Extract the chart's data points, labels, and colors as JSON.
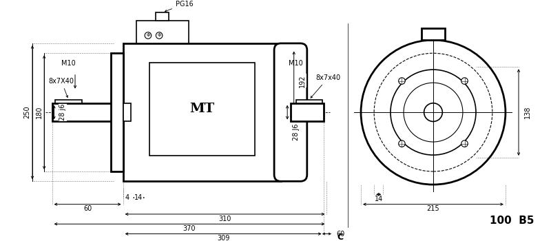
{
  "title": "100  B5",
  "bg_color": "#ffffff",
  "line_color": "#000000",
  "dim_color": "#000000",
  "fig_width": 8.0,
  "fig_height": 3.5,
  "labels": {
    "key_8x7x40_left": "8x7X40",
    "key_pg16": "PG16",
    "key_8x7x40_right": "8x7x40",
    "m10_left": "M10",
    "m10_right": "M10",
    "mt": "MT",
    "dim_250": "250",
    "dim_180": "180",
    "dim_28j6_left": "28 j6",
    "dim_28j6_right": "28 J6",
    "dim_192": "192",
    "dim_4": "4",
    "dim_14_left": "14",
    "dim_60_left": "60",
    "dim_310": "310",
    "dim_370": "370",
    "dim_309": "309",
    "dim_60_right_bottom": "60",
    "label_c": "C",
    "dim_14_right": "14",
    "dim_215": "215",
    "dim_138": "138"
  }
}
